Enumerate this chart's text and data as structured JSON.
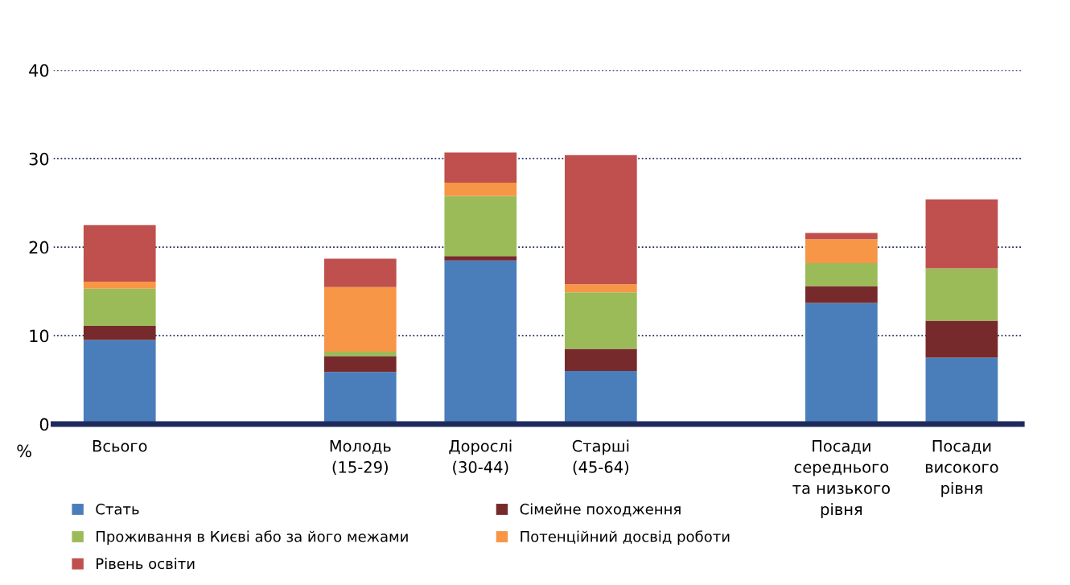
{
  "chart_data": {
    "type": "bar",
    "stacked": true,
    "ylabel": "%",
    "categories": [
      "Всього",
      null,
      "Молодь\n(15-29)",
      "Дорослі\n(30-44)",
      "Старші\n(45-64)",
      null,
      "Посади\nсереднього\nта низького\nрівня",
      "Посади\nвисокого\nрівня"
    ],
    "series": [
      {
        "name": "Стать",
        "color": "#4a7ebb",
        "values": [
          9.5,
          null,
          5.9,
          18.5,
          6.0,
          null,
          13.7,
          7.5
        ]
      },
      {
        "name": "Сімейне походження",
        "color": "#772a2b",
        "values": [
          1.6,
          null,
          1.8,
          0.5,
          2.5,
          null,
          1.9,
          4.2
        ]
      },
      {
        "name": "Проживання в Києві або за його межами",
        "color": "#9bbb59",
        "values": [
          4.2,
          null,
          0.5,
          6.8,
          6.4,
          null,
          2.6,
          5.9
        ]
      },
      {
        "name": "Потенційний досвід роботи",
        "color": "#f79646",
        "values": [
          0.8,
          null,
          7.3,
          1.5,
          0.9,
          null,
          2.7,
          0
        ]
      },
      {
        "name": "Рівень освіти",
        "color": "#c0504d",
        "values": [
          6.4,
          null,
          3.2,
          3.4,
          14.6,
          null,
          0.7,
          7.8
        ]
      }
    ],
    "ylim": [
      0,
      40
    ],
    "yticks": [
      0,
      10,
      20,
      30,
      40
    ],
    "grid": "y",
    "legend": "bottom left"
  }
}
